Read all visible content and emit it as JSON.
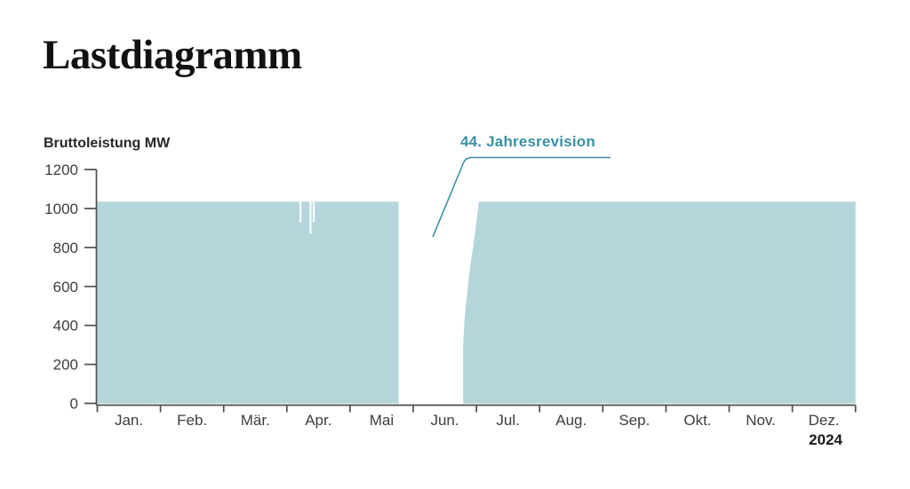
{
  "page": {
    "title": "Lastdiagramm",
    "year": "2024"
  },
  "annotation": {
    "label": "44. Jahresrevision"
  },
  "colors": {
    "area_fill": "#b4d6da",
    "accent": "#3b90a3",
    "axis": "#4d4d4d",
    "tick_text": "#3d3d3d",
    "year_text": "#1a1a1a"
  },
  "chart_data": {
    "type": "area",
    "title": "Lastdiagramm",
    "ylabel": "Bruttoleistung MW",
    "unit": "MW",
    "year": "2024",
    "ylim": [
      0,
      1200
    ],
    "y_ticks": [
      0,
      200,
      400,
      600,
      800,
      1000,
      1200
    ],
    "x_categories": [
      "Jan.",
      "Feb.",
      "Mär.",
      "Apr.",
      "Mai",
      "Jun.",
      "Jul.",
      "Aug.",
      "Sep.",
      "Okt.",
      "Nov.",
      "Dez."
    ],
    "grid": false,
    "legend": "none",
    "annotations": [
      {
        "text": "44. Jahresrevision",
        "refers_to": "Erzeugungslücke (Revisionsstillstand) von ca. 24. Mai bis 24. Juni 2024"
      }
    ],
    "series": [
      {
        "name": "Bruttoleistung",
        "x_unit": "Monat (0 = 1. Jan., 12 = 31. Dez.)",
        "points": [
          [
            0.0,
            1035
          ],
          [
            3.2,
            1035
          ],
          [
            3.2,
            930
          ],
          [
            3.23,
            930
          ],
          [
            3.23,
            1035
          ],
          [
            3.36,
            1035
          ],
          [
            3.36,
            870
          ],
          [
            3.39,
            870
          ],
          [
            3.39,
            1035
          ],
          [
            3.41,
            1035
          ],
          [
            3.41,
            930
          ],
          [
            3.44,
            930
          ],
          [
            3.44,
            1035
          ],
          [
            4.77,
            1035
          ],
          [
            4.77,
            0
          ],
          [
            5.79,
            0
          ],
          [
            5.79,
            300
          ],
          [
            5.81,
            430
          ],
          [
            5.84,
            520
          ],
          [
            5.9,
            700
          ],
          [
            5.96,
            830
          ],
          [
            6.04,
            1035
          ],
          [
            12.0,
            1035
          ]
        ]
      }
    ]
  }
}
